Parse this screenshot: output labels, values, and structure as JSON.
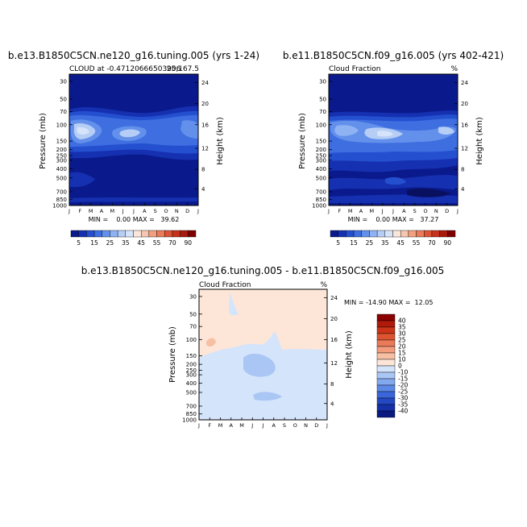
{
  "months": [
    "J",
    "F",
    "M",
    "A",
    "M",
    "J",
    "J",
    "A",
    "S",
    "O",
    "N",
    "D",
    "J"
  ],
  "pressure_ticks": [
    "30",
    "50",
    "70",
    "100",
    "150",
    "200",
    "250",
    "300",
    "400",
    "500",
    "700",
    "850",
    "1000"
  ],
  "height_ticks": [
    "24",
    "20",
    "16",
    "12",
    "8",
    "4"
  ],
  "panels": [
    {
      "title": "b.e13.B1850C5CN.ne120_g16.tuning.005 (yrs 1-24)",
      "subtitle_left": "CLOUD at -0.47120666503906",
      "subtitle_right": "25,167.5",
      "ylabel": "Pressure (mb)",
      "y2label": "Height (km)",
      "stats": "MIN =    0.00 MAX =   39.62"
    },
    {
      "title": "b.e11.B1850C5CN.f09_g16.005 (yrs 402-421)",
      "subtitle_left": "Cloud Fraction",
      "subtitle_right": "%",
      "ylabel": "Pressure (mb)",
      "y2label": "Height (km)",
      "stats": "MIN =    0.00 MAX =   37.27"
    },
    {
      "title": "b.e13.B1850C5CN.ne120_g16.tuning.005 - b.e11.B1850C5CN.f09_g16.005",
      "subtitle_left": "Cloud Fraction",
      "subtitle_right": "%",
      "ylabel": "Pressure (mb)",
      "y2label": "Height (km)",
      "stats": "MIN = -14.90 MAX =  12.05"
    }
  ],
  "colorbar_main": {
    "labels": [
      "5",
      "15",
      "25",
      "35",
      "45",
      "55",
      "70",
      "90"
    ],
    "colors": [
      "#0a1a8c",
      "#1530b0",
      "#2450d0",
      "#3e6ee0",
      "#6290ea",
      "#8eb2f2",
      "#b6cdf6",
      "#d6e4fa",
      "#fbe6dc",
      "#f7c6b0",
      "#f2a080",
      "#ea7a58",
      "#dc5435",
      "#c8321c",
      "#a81a0c",
      "#800000"
    ]
  },
  "colorbar_diff": {
    "labels": [
      "40",
      "35",
      "30",
      "25",
      "20",
      "15",
      "10",
      "0",
      "-10",
      "-15",
      "-20",
      "-25",
      "-30",
      "-35",
      "-40"
    ],
    "colors": [
      "#8b0000",
      "#b01a0a",
      "#cc3418",
      "#dd5530",
      "#ea7a58",
      "#f29c7c",
      "#f7c0a4",
      "#fde6d8",
      "#d4e4fb",
      "#aac6f4",
      "#82a8ee",
      "#5c88e6",
      "#3a66da",
      "#2448c2",
      "#1530a8",
      "#0a1a80"
    ]
  },
  "chart_data": [
    {
      "type": "heatmap",
      "title": "b.e13.B1850C5CN.ne120_g16.tuning.005 (yrs 1-24)",
      "xlabel": "",
      "ylabel": "Pressure (mb)",
      "y2label": "Height (km)",
      "x": [
        "J",
        "F",
        "M",
        "A",
        "M",
        "J",
        "J",
        "A",
        "S",
        "O",
        "N",
        "D",
        "J"
      ],
      "pressure_levels": [
        30,
        50,
        70,
        100,
        150,
        200,
        250,
        300,
        400,
        500,
        700,
        850,
        1000
      ],
      "zmin": 0.0,
      "zmax": 39.62,
      "units": "%"
    },
    {
      "type": "heatmap",
      "title": "b.e11.B1850C5CN.f09_g16.005 (yrs 402-421)",
      "xlabel": "",
      "ylabel": "Pressure (mb)",
      "y2label": "Height (km)",
      "x": [
        "J",
        "F",
        "M",
        "A",
        "M",
        "J",
        "J",
        "A",
        "S",
        "O",
        "N",
        "D",
        "J"
      ],
      "pressure_levels": [
        30,
        50,
        70,
        100,
        150,
        200,
        250,
        300,
        400,
        500,
        700,
        850,
        1000
      ],
      "zmin": 0.0,
      "zmax": 37.27,
      "units": "%"
    },
    {
      "type": "heatmap",
      "title": "b.e13.B1850C5CN.ne120_g16.tuning.005 - b.e11.B1850C5CN.f09_g16.005",
      "xlabel": "",
      "ylabel": "Pressure (mb)",
      "y2label": "Height (km)",
      "x": [
        "J",
        "F",
        "M",
        "A",
        "M",
        "J",
        "J",
        "A",
        "S",
        "O",
        "N",
        "D",
        "J"
      ],
      "pressure_levels": [
        30,
        50,
        70,
        100,
        150,
        200,
        250,
        300,
        400,
        500,
        700,
        850,
        1000
      ],
      "zmin": -14.9,
      "zmax": 12.05,
      "units": "%"
    }
  ]
}
